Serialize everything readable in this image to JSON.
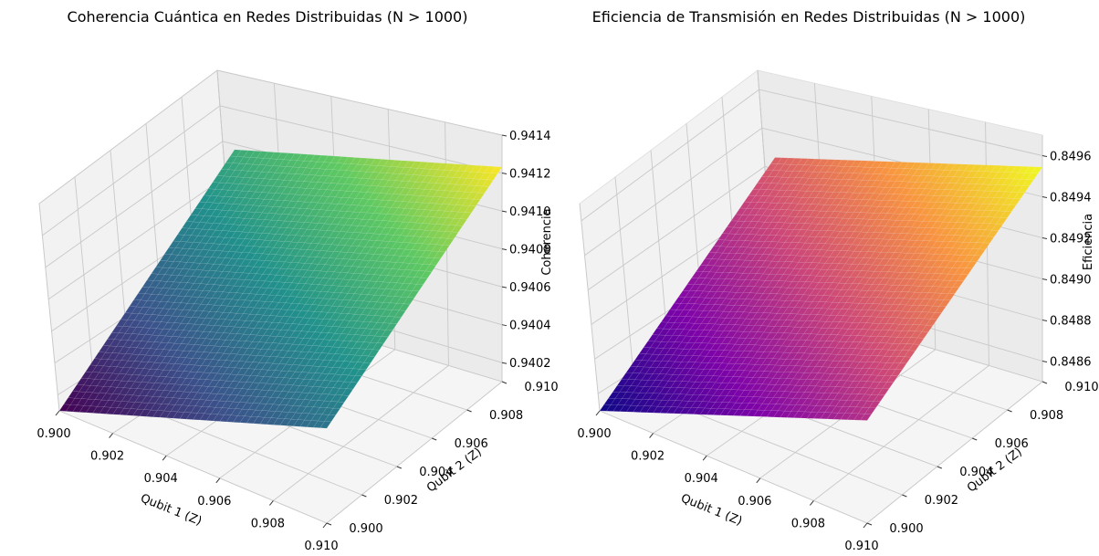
{
  "chart_data": [
    {
      "type": "surface3d",
      "title": "Coherencia Cuántica en Redes Distribuidas (N > 1000)",
      "xlabel": "Qubit 1 (Z)",
      "ylabel": "Qubit 2 (Z)",
      "zlabel": "Coherencia",
      "x_ticks": [
        "0.900",
        "0.902",
        "0.904",
        "0.906",
        "0.908",
        "0.910"
      ],
      "y_ticks": [
        "0.900",
        "0.902",
        "0.904",
        "0.906",
        "0.908",
        "0.910"
      ],
      "z_ticks": [
        "0.9402",
        "0.9404",
        "0.9406",
        "0.9408",
        "0.9410",
        "0.9412",
        "0.9414"
      ],
      "xlim": [
        0.9,
        0.91
      ],
      "ylim": [
        0.9,
        0.91
      ],
      "zlim": [
        0.9401,
        0.9414
      ],
      "surface_corners": {
        "x0_y0": 0.9401,
        "x1_y0": 0.9406,
        "x0_y1": 0.9409,
        "x1_y1": 0.9414
      },
      "colormap": "viridis",
      "colors": [
        "#440154",
        "#3b528b",
        "#21918c",
        "#5ec962",
        "#fde725"
      ],
      "grid": true
    },
    {
      "type": "surface3d",
      "title": "Eficiencia de Transmisión en Redes Distribuidas (N > 1000)",
      "xlabel": "Qubit 1 (Z)",
      "ylabel": "Qubit 2 (Z)",
      "zlabel": "Eficiencia",
      "x_ticks": [
        "0.900",
        "0.902",
        "0.904",
        "0.906",
        "0.908",
        "0.910"
      ],
      "y_ticks": [
        "0.900",
        "0.902",
        "0.904",
        "0.906",
        "0.908",
        "0.910"
      ],
      "z_ticks": [
        "0.8486",
        "0.8488",
        "0.8490",
        "0.8492",
        "0.8494",
        "0.8496"
      ],
      "xlim": [
        0.9,
        0.91
      ],
      "ylim": [
        0.9,
        0.91
      ],
      "zlim": [
        0.8485,
        0.8497
      ],
      "surface_corners": {
        "x0_y0": 0.8485,
        "x1_y0": 0.849,
        "x0_y1": 0.8492,
        "x1_y1": 0.8497
      },
      "colormap": "plasma",
      "colors": [
        "#0d0887",
        "#7e03a8",
        "#cc4778",
        "#f89540",
        "#f0f921"
      ],
      "grid": true
    }
  ]
}
